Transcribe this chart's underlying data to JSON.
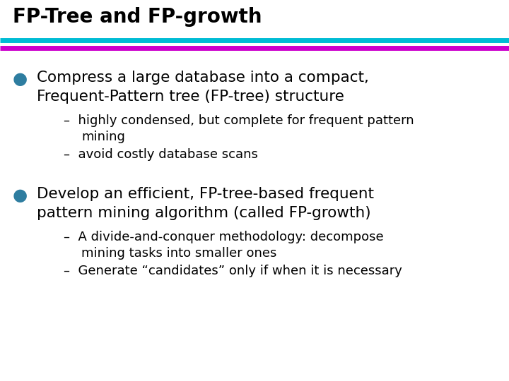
{
  "title": "FP-Tree and FP-growth",
  "title_color": "#000000",
  "title_fontsize": 20,
  "background_color": "#ffffff",
  "line1_color": "#00bcd4",
  "line2_color": "#cc00cc",
  "bullet_color": "#2e7da0",
  "bullet1_text_line1": "Compress a large database into a compact,",
  "bullet1_text_line2": "Frequent-Pattern tree (FP-tree) structure",
  "sub1_line1": "highly condensed, but complete for frequent pattern",
  "sub1_line2": "mining",
  "sub2": "avoid costly database scans",
  "bullet2_text_line1": "Develop an efficient, FP-tree-based frequent",
  "bullet2_text_line2": "pattern mining algorithm (called FP-growth)",
  "sub3_line1": "A divide-and-conquer methodology: decompose",
  "sub3_line2": "mining tasks into smaller ones",
  "sub4": "Generate “candidates” only if when it is necessary",
  "body_fontsize": 15.5,
  "sub_fontsize": 13,
  "text_color": "#000000"
}
